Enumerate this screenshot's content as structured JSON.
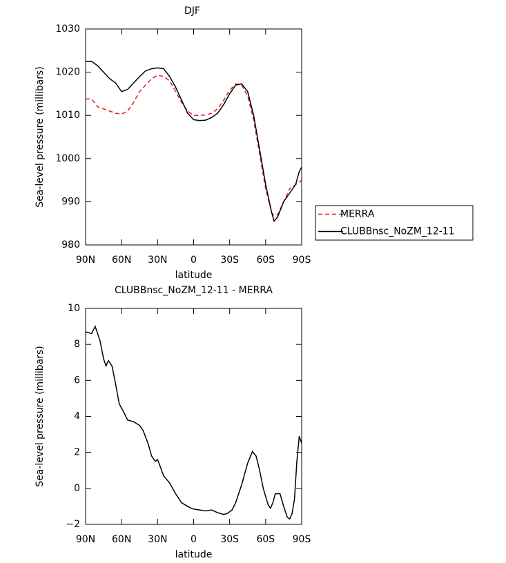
{
  "chart_data": [
    {
      "type": "line",
      "title": "DJF",
      "x_label": "latitude",
      "y_label": "Sea-level pressure (millibars)",
      "xlim": [
        90,
        -90
      ],
      "xticks": [
        {
          "value": 90,
          "label": "90N"
        },
        {
          "value": 60,
          "label": "60N"
        },
        {
          "value": 30,
          "label": "30N"
        },
        0,
        {
          "value": -30,
          "label": "30S"
        },
        {
          "value": -60,
          "label": "60S"
        },
        {
          "value": -90,
          "label": "90S"
        }
      ],
      "ylim": [
        980,
        1030
      ],
      "yticks": [
        980,
        990,
        1000,
        1010,
        1020,
        1030
      ],
      "legend": "outside-right",
      "x": [
        90,
        85,
        80,
        75,
        70,
        65,
        60,
        55,
        50,
        45,
        40,
        35,
        30,
        25,
        20,
        15,
        10,
        5,
        0,
        -5,
        -10,
        -15,
        -20,
        -25,
        -30,
        -35,
        -40,
        -45,
        -50,
        -55,
        -60,
        -65,
        -67,
        -70,
        -75,
        -80,
        -85,
        -88,
        -90
      ],
      "series": [
        {
          "name": "MERRA",
          "color": "#e41a1c",
          "dashed": true,
          "values": [
            1013.8,
            1013.8,
            1012,
            1011.5,
            1011,
            1010.5,
            1010.3,
            1011,
            1013,
            1015.5,
            1017,
            1018.5,
            1019.3,
            1019,
            1018,
            1015.5,
            1013,
            1011,
            1010,
            1010,
            1010.1,
            1010.5,
            1011.5,
            1013.5,
            1015.8,
            1017.3,
            1017,
            1014.5,
            1009,
            1001,
            993,
            987.5,
            986.8,
            987,
            990,
            993,
            994,
            994.5,
            995
          ]
        },
        {
          "name": "CLUBBnsc_NoZM_12-11",
          "color": "#000000",
          "dashed": false,
          "values": [
            1022.5,
            1022.5,
            1021.5,
            1020,
            1018.5,
            1017.5,
            1015.5,
            1016,
            1017.5,
            1019,
            1020.3,
            1020.8,
            1021,
            1020.8,
            1019,
            1016.5,
            1013.5,
            1010.5,
            1009,
            1008.8,
            1008.9,
            1009.5,
            1010.5,
            1012.5,
            1015,
            1017,
            1017.3,
            1015.5,
            1010,
            1002,
            994,
            987.5,
            985.5,
            986.5,
            990,
            992,
            994,
            997,
            998
          ]
        }
      ]
    },
    {
      "type": "line",
      "title": "CLUBBnsc_NoZM_12-11 - MERRA",
      "x_label": "latitude",
      "y_label": "Sea-level pressure (millibars)",
      "xlim": [
        90,
        -90
      ],
      "xticks": [
        {
          "value": 90,
          "label": "90N"
        },
        {
          "value": 60,
          "label": "60N"
        },
        {
          "value": 30,
          "label": "30N"
        },
        0,
        {
          "value": -30,
          "label": "30S"
        },
        {
          "value": -60,
          "label": "60S"
        },
        {
          "value": -90,
          "label": "90S"
        }
      ],
      "ylim": [
        -2,
        10
      ],
      "yticks": [
        {
          "value": -2,
          "label": "−2"
        },
        0,
        2,
        4,
        6,
        8,
        10
      ],
      "color": "#000000",
      "x": [
        90,
        85,
        82,
        78,
        75,
        73,
        71,
        68,
        65,
        62,
        58,
        55,
        50,
        45,
        42,
        38,
        35,
        32,
        30,
        25,
        20,
        15,
        10,
        5,
        2,
        0,
        -5,
        -10,
        -15,
        -20,
        -25,
        -28,
        -32,
        -35,
        -40,
        -45,
        -49,
        -52,
        -55,
        -58,
        -62,
        -64,
        -66,
        -68,
        -72,
        -75,
        -78,
        -80,
        -82,
        -84,
        -86,
        -88,
        -90
      ],
      "values": [
        8.7,
        8.6,
        9.0,
        8.2,
        7.2,
        6.8,
        7.1,
        6.8,
        5.8,
        4.7,
        4.2,
        3.8,
        3.7,
        3.5,
        3.2,
        2.5,
        1.8,
        1.5,
        1.6,
        0.7,
        0.3,
        -0.3,
        -0.8,
        -1.0,
        -1.1,
        -1.15,
        -1.2,
        -1.25,
        -1.2,
        -1.35,
        -1.45,
        -1.4,
        -1.2,
        -0.8,
        0.2,
        1.4,
        2.05,
        1.8,
        1.0,
        0.0,
        -0.9,
        -1.1,
        -0.8,
        -0.3,
        -0.3,
        -1.0,
        -1.6,
        -1.7,
        -1.4,
        -0.6,
        1.5,
        2.9,
        2.5
      ]
    }
  ]
}
